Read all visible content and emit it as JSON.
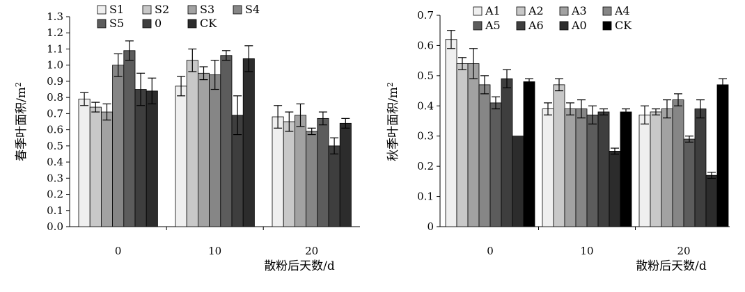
{
  "chart_data": [
    {
      "type": "bar",
      "title": "",
      "xlabel": "散粉后天数/d",
      "ylabel": "春季叶面积/m",
      "ylabel_sup": "2",
      "categories": [
        "0",
        "10",
        "20"
      ],
      "ylim": [
        0.0,
        1.3
      ],
      "yticks": [
        "0.0",
        "0.1",
        "0.2",
        "0.3",
        "0.4",
        "0.5",
        "0.6",
        "0.7",
        "0.8",
        "0.9",
        "1.0",
        "1.1",
        "1.2",
        "1.3"
      ],
      "legend_position": "top-left",
      "series": [
        {
          "name": "S1",
          "color": "#efefef",
          "values": [
            0.79,
            0.87,
            0.68
          ],
          "errors": [
            0.04,
            0.06,
            0.07
          ]
        },
        {
          "name": "S2",
          "color": "#c8c8c8",
          "values": [
            0.74,
            1.03,
            0.65
          ],
          "errors": [
            0.03,
            0.07,
            0.06
          ]
        },
        {
          "name": "S3",
          "color": "#a2a2a2",
          "values": [
            0.71,
            0.95,
            0.69
          ],
          "errors": [
            0.05,
            0.04,
            0.07
          ]
        },
        {
          "name": "S4",
          "color": "#868686",
          "values": [
            1.0,
            0.94,
            0.59
          ],
          "errors": [
            0.07,
            0.09,
            0.02
          ]
        },
        {
          "name": "S5",
          "color": "#5c5c5c",
          "values": [
            1.09,
            1.06,
            0.67
          ],
          "errors": [
            0.06,
            0.03,
            0.04
          ]
        },
        {
          "name": "0",
          "color": "#3e3e3e",
          "values": [
            0.85,
            0.69,
            0.5
          ],
          "errors": [
            0.1,
            0.12,
            0.05
          ]
        },
        {
          "name": "CK",
          "color": "#2c2c2c",
          "values": [
            0.84,
            1.04,
            0.64
          ],
          "errors": [
            0.08,
            0.08,
            0.03
          ]
        }
      ]
    },
    {
      "type": "bar",
      "title": "",
      "xlabel": "散粉后天数/d",
      "ylabel": "秋季叶面积/m",
      "ylabel_sup": "2",
      "categories": [
        "0",
        "10",
        "20"
      ],
      "ylim": [
        0.0,
        0.7
      ],
      "yticks": [
        "0",
        "0.1",
        "0.2",
        "0.3",
        "0.4",
        "0.5",
        "0.6",
        "0.7"
      ],
      "legend_position": "top-left",
      "series": [
        {
          "name": "A1",
          "color": "#efefef",
          "values": [
            0.62,
            0.39,
            0.37
          ],
          "errors": [
            0.03,
            0.02,
            0.03
          ]
        },
        {
          "name": "A2",
          "color": "#c8c8c8",
          "values": [
            0.54,
            0.47,
            0.38
          ],
          "errors": [
            0.02,
            0.02,
            0.01
          ]
        },
        {
          "name": "A3",
          "color": "#a2a2a2",
          "values": [
            0.54,
            0.39,
            0.39
          ],
          "errors": [
            0.05,
            0.02,
            0.03
          ]
        },
        {
          "name": "A4",
          "color": "#868686",
          "values": [
            0.47,
            0.39,
            0.42
          ],
          "errors": [
            0.03,
            0.03,
            0.02
          ]
        },
        {
          "name": "A5",
          "color": "#5c5c5c",
          "values": [
            0.41,
            0.37,
            0.29
          ],
          "errors": [
            0.02,
            0.03,
            0.01
          ]
        },
        {
          "name": "A6",
          "color": "#3e3e3e",
          "values": [
            0.49,
            0.38,
            0.39
          ],
          "errors": [
            0.03,
            0.01,
            0.03
          ]
        },
        {
          "name": "A0",
          "color": "#2c2c2c",
          "values": [
            0.3,
            0.25,
            0.17
          ],
          "errors": [
            0.0,
            0.01,
            0.01
          ]
        },
        {
          "name": "CK",
          "color": "#000000",
          "values": [
            0.48,
            0.38,
            0.47
          ],
          "errors": [
            0.01,
            0.01,
            0.02
          ]
        }
      ]
    }
  ]
}
